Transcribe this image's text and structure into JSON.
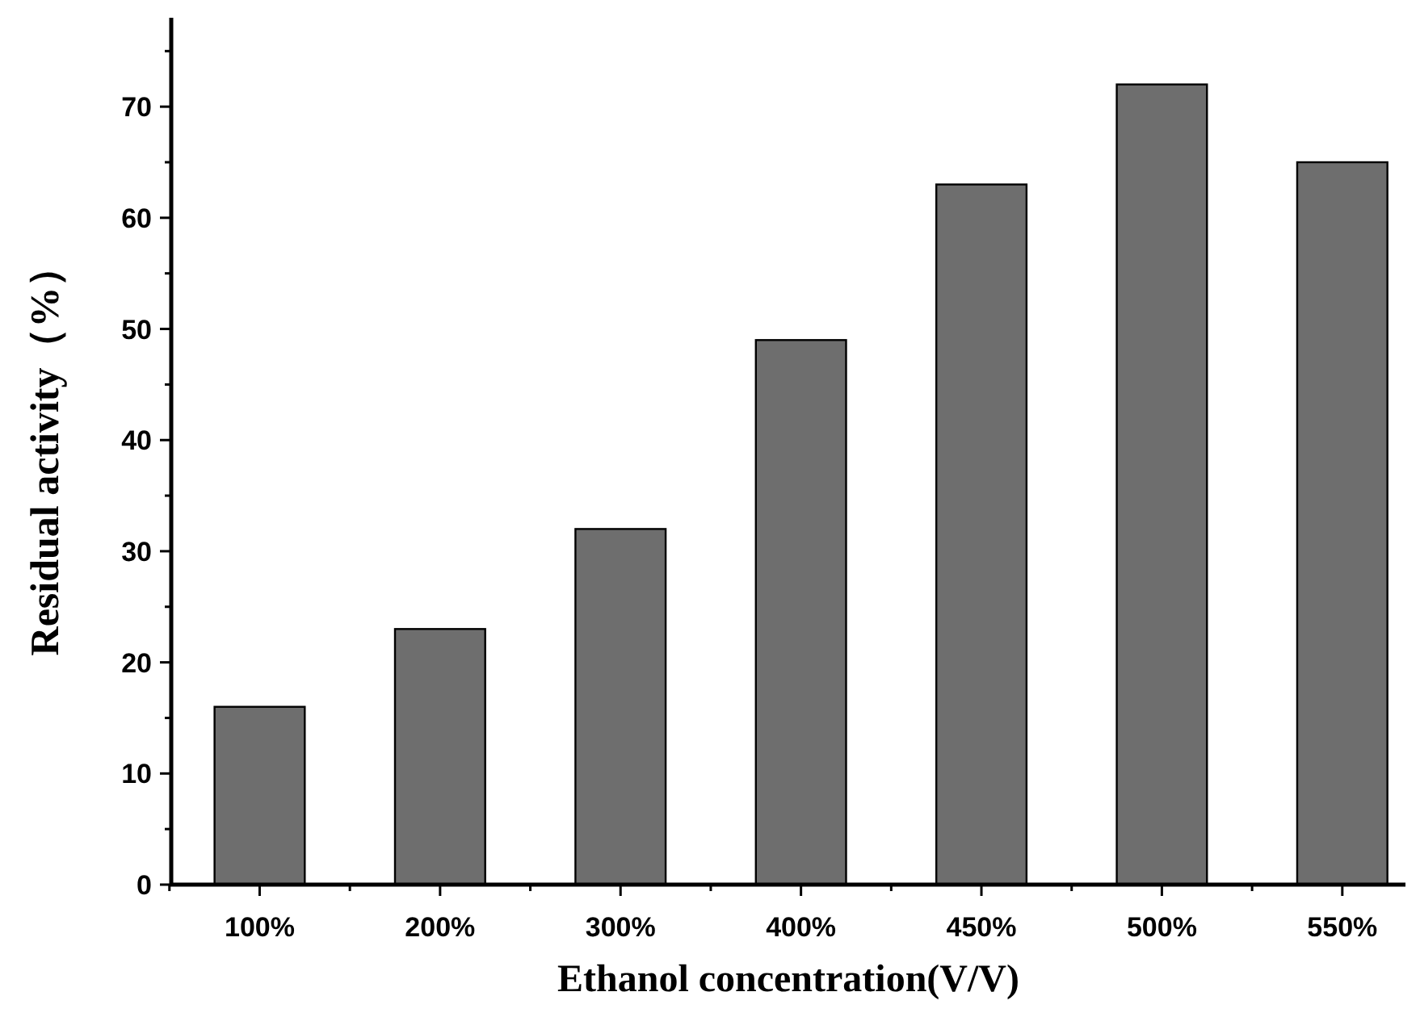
{
  "chart_data": {
    "type": "bar",
    "xlabel": "Ethanol concentration(V/V)",
    "ylabel": "Residual activity（%）",
    "categories": [
      "100%",
      "200%",
      "300%",
      "400%",
      "450%",
      "500%",
      "550%"
    ],
    "values": [
      16,
      23,
      32,
      49,
      63,
      72,
      65
    ],
    "color": "#6e6e6e",
    "ylim": [
      0,
      78
    ],
    "yticks": [
      0,
      10,
      20,
      30,
      40,
      50,
      60,
      70
    ]
  }
}
